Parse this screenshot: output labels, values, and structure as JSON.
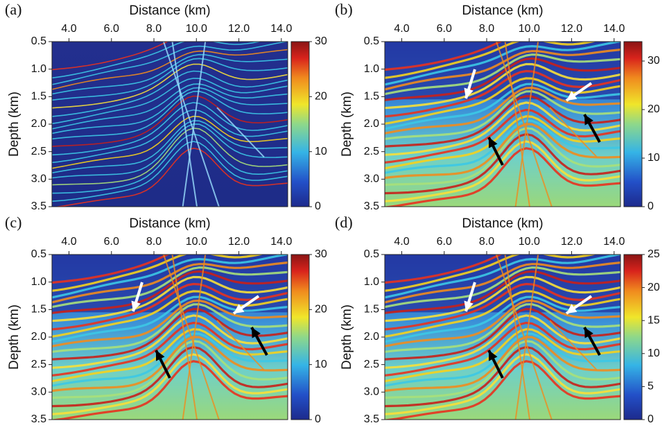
{
  "chart_data": [
    {
      "type": "heatmap",
      "panel_label": "(a)",
      "x_label": "Distance (km)",
      "y_label": "Depth (km)",
      "xlim": [
        3.2,
        14.3
      ],
      "xticks": [
        {
          "value": 4,
          "label": "4.0"
        },
        {
          "value": 6,
          "label": "6.0"
        },
        {
          "value": 8,
          "label": "8.0"
        },
        {
          "value": 10,
          "label": "10.0"
        },
        {
          "value": 12,
          "label": "12.0"
        },
        {
          "value": 14,
          "label": "14.0"
        }
      ],
      "ylim": [
        0.5,
        3.5
      ],
      "y_inverted": true,
      "yticks": [
        0.5,
        {
          "value": 1,
          "label": "1.0"
        },
        1.5,
        {
          "value": 2,
          "label": "2.0"
        },
        2.5,
        {
          "value": 3,
          "label": "3.0"
        },
        3.5
      ],
      "colormap": "jet",
      "colorbar_lim": [
        0,
        30
      ],
      "colorbar_ticks": [
        0,
        10,
        20,
        30
      ]
    },
    {
      "type": "heatmap",
      "panel_label": "(b)",
      "x_label": "Distance (km)",
      "y_label": "Depth (km)",
      "xlim": [
        3.2,
        14.3
      ],
      "xticks": [
        {
          "value": 4,
          "label": "4.0"
        },
        {
          "value": 6,
          "label": "6.0"
        },
        {
          "value": 8,
          "label": "8.0"
        },
        {
          "value": 10,
          "label": "10.0"
        },
        {
          "value": 12,
          "label": "12.0"
        },
        {
          "value": 14,
          "label": "14.0"
        }
      ],
      "ylim": [
        0.5,
        3.5
      ],
      "y_inverted": true,
      "yticks": [
        0.5,
        {
          "value": 1,
          "label": "1.0"
        },
        1.5,
        {
          "value": 2,
          "label": "2.0"
        },
        2.5,
        {
          "value": 3,
          "label": "3.0"
        },
        3.5
      ],
      "colormap": "jet",
      "colorbar_lim": [
        0,
        34
      ],
      "colorbar_ticks": [
        0,
        10,
        20,
        30
      ]
    },
    {
      "type": "heatmap",
      "panel_label": "(c)",
      "x_label": "Distance (km)",
      "y_label": "Depth (km)",
      "xlim": [
        3.2,
        14.3
      ],
      "xticks": [
        {
          "value": 4,
          "label": "4.0"
        },
        {
          "value": 6,
          "label": "6.0"
        },
        {
          "value": 8,
          "label": "8.0"
        },
        {
          "value": 10,
          "label": "10.0"
        },
        {
          "value": 12,
          "label": "12.0"
        },
        {
          "value": 14,
          "label": "14.0"
        }
      ],
      "ylim": [
        0.5,
        3.5
      ],
      "y_inverted": true,
      "yticks": [
        0.5,
        {
          "value": 1,
          "label": "1.0"
        },
        1.5,
        {
          "value": 2,
          "label": "2.0"
        },
        2.5,
        {
          "value": 3,
          "label": "3.0"
        },
        3.5
      ],
      "colormap": "jet",
      "colorbar_lim": [
        0,
        30
      ],
      "colorbar_ticks": [
        0,
        10,
        20,
        30
      ]
    },
    {
      "type": "heatmap",
      "panel_label": "(d)",
      "x_label": "Distance (km)",
      "y_label": "Depth (km)",
      "xlim": [
        3.2,
        14.3
      ],
      "xticks": [
        {
          "value": 4,
          "label": "4.0"
        },
        {
          "value": 6,
          "label": "6.0"
        },
        {
          "value": 8,
          "label": "8.0"
        },
        {
          "value": 10,
          "label": "10.0"
        },
        {
          "value": 12,
          "label": "12.0"
        },
        {
          "value": 14,
          "label": "14.0"
        }
      ],
      "ylim": [
        0.5,
        3.5
      ],
      "y_inverted": true,
      "yticks": [
        0.5,
        {
          "value": 1,
          "label": "1.0"
        },
        1.5,
        {
          "value": 2,
          "label": "2.0"
        },
        2.5,
        {
          "value": 3,
          "label": "3.0"
        },
        3.5
      ],
      "colormap": "jet",
      "colorbar_lim": [
        0,
        25
      ],
      "colorbar_ticks": [
        0,
        5,
        10,
        15,
        20,
        25
      ]
    }
  ]
}
